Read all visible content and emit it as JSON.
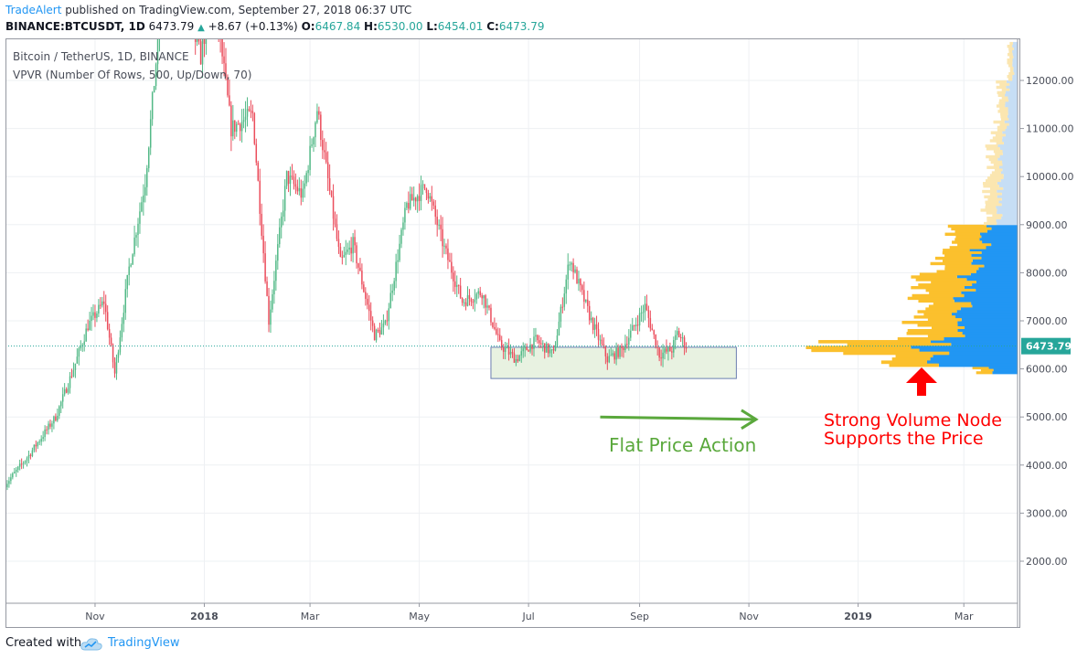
{
  "header": {
    "author": "TradeAlert",
    "published": "published on TradingView.com, September 27, 2018 06:37 UTC",
    "symbol": "BINANCE:BTCUSDT, 1D",
    "last": "6473.79",
    "change": "+8.67 (+0.13%)",
    "o_label": "O:",
    "o_value": "6467.84",
    "h_label": "H:",
    "h_value": "6530.00",
    "l_label": "L:",
    "l_value": "6454.01",
    "c_label": "C:",
    "c_value": "6473.79"
  },
  "legend": {
    "title": "Bitcoin / TetherUS, 1D, BINANCE",
    "indicator": "VPVR (Number Of Rows, 500, Up/Down, 70)"
  },
  "footer": {
    "created": "Created with",
    "brand": "TradingView"
  },
  "colors": {
    "up": "#26a69a",
    "down": "#ef5350",
    "candle_up": "#53b987",
    "candle_down": "#eb4d5c",
    "vol_up": "#2196f3",
    "vol_down": "#fbc02d",
    "annotation_green": "#5aa83c",
    "annotation_red": "#ff0000",
    "box_fill": "#e8f2e1",
    "box_border": "#6b7fb0",
    "price_label": "#26a69a"
  },
  "chart_data": {
    "type": "candlestick",
    "symbol": "Bitcoin / TetherUS",
    "interval": "1D",
    "y_ticks": [
      2000,
      3000,
      4000,
      5000,
      6000,
      7000,
      8000,
      9000,
      10000,
      11000,
      12000
    ],
    "y_tick_labels": [
      "2000.00",
      "3000.00",
      "4000.00",
      "5000.00",
      "6000.00",
      "7000.00",
      "8000.00",
      "9000.00",
      "10000.00",
      "11000.00",
      "12000.00"
    ],
    "ylim": [
      1000,
      12800
    ],
    "x_ticks": [
      "2017-11-01",
      "2018-01-01",
      "2018-03-01",
      "2018-05-01",
      "2018-07-01",
      "2018-09-01",
      "2018-11-01",
      "2019-01-01",
      "2019-03-01"
    ],
    "x_tick_labels": [
      "Nov",
      "2018",
      "Mar",
      "May",
      "Jul",
      "Sep",
      "Nov",
      "2019",
      "Mar"
    ],
    "xlim": [
      "2017-09-12",
      "2019-03-31"
    ],
    "last_price": 6473.79,
    "last_price_label": "6473.79",
    "price_path": [
      [
        "2017-09-12",
        3600
      ],
      [
        "2017-09-25",
        4200
      ],
      [
        "2017-10-10",
        5000
      ],
      [
        "2017-10-20",
        6000
      ],
      [
        "2017-10-28",
        6900
      ],
      [
        "2017-11-06",
        7400
      ],
      [
        "2017-11-12",
        5900
      ],
      [
        "2017-11-20",
        8100
      ],
      [
        "2017-11-29",
        9900
      ],
      [
        "2017-12-07",
        13200
      ],
      [
        "2017-12-17",
        14000
      ],
      [
        "2017-12-30",
        12500
      ],
      [
        "2018-01-06",
        14000
      ],
      [
        "2018-01-16",
        11000
      ],
      [
        "2018-01-28",
        11300
      ],
      [
        "2018-02-06",
        7000
      ],
      [
        "2018-02-16",
        10000
      ],
      [
        "2018-02-25",
        9600
      ],
      [
        "2018-03-05",
        11400
      ],
      [
        "2018-03-18",
        8200
      ],
      [
        "2018-03-25",
        8600
      ],
      [
        "2018-04-06",
        6700
      ],
      [
        "2018-04-12",
        6900
      ],
      [
        "2018-04-24",
        9400
      ],
      [
        "2018-05-05",
        9800
      ],
      [
        "2018-05-15",
        8500
      ],
      [
        "2018-05-25",
        7400
      ],
      [
        "2018-06-05",
        7600
      ],
      [
        "2018-06-15",
        6500
      ],
      [
        "2018-06-24",
        6200
      ],
      [
        "2018-07-05",
        6600
      ],
      [
        "2018-07-15",
        6300
      ],
      [
        "2018-07-24",
        8300
      ],
      [
        "2018-08-05",
        7000
      ],
      [
        "2018-08-14",
        6200
      ],
      [
        "2018-08-22",
        6400
      ],
      [
        "2018-09-04",
        7300
      ],
      [
        "2018-09-12",
        6300
      ],
      [
        "2018-09-19",
        6400
      ],
      [
        "2018-09-22",
        6750
      ],
      [
        "2018-09-27",
        6474
      ]
    ],
    "volume_profile_bands": [
      {
        "price_range": [
          5900,
          6050
        ],
        "up": 0.3,
        "down": 0.15
      },
      {
        "price_range": [
          6050,
          6300
        ],
        "up": 0.85,
        "down": 0.45
      },
      {
        "price_range": [
          6300,
          6600
        ],
        "up": 1.0,
        "down": 1.0
      },
      {
        "price_range": [
          6600,
          7000
        ],
        "up": 0.7,
        "down": 0.4
      },
      {
        "price_range": [
          7000,
          7500
        ],
        "up": 0.6,
        "down": 0.35
      },
      {
        "price_range": [
          7500,
          8000
        ],
        "up": 0.55,
        "down": 0.4
      },
      {
        "price_range": [
          8000,
          8500
        ],
        "up": 0.5,
        "down": 0.35
      },
      {
        "price_range": [
          8500,
          9000
        ],
        "up": 0.35,
        "down": 0.3
      },
      {
        "price_range": [
          9000,
          10000
        ],
        "up": 0.2,
        "down": 0.12
      },
      {
        "price_range": [
          10000,
          11000
        ],
        "up": 0.18,
        "down": 0.1
      },
      {
        "price_range": [
          11000,
          12000
        ],
        "up": 0.12,
        "down": 0.08
      },
      {
        "price_range": [
          12000,
          12800
        ],
        "up": 0.05,
        "down": 0.04
      }
    ],
    "annotations": {
      "range_box": {
        "start": "2018-06-10",
        "end": "2018-10-25",
        "low": 5800,
        "high": 6450
      },
      "arrow": {
        "start": "2018-08-10",
        "end": "2018-11-05",
        "y_start": 5000,
        "y_end": 4950
      },
      "flat_label": "Flat Price Action",
      "volume_label_line1": "Strong Volume Node",
      "volume_label_line2": "Supports the Price"
    }
  }
}
